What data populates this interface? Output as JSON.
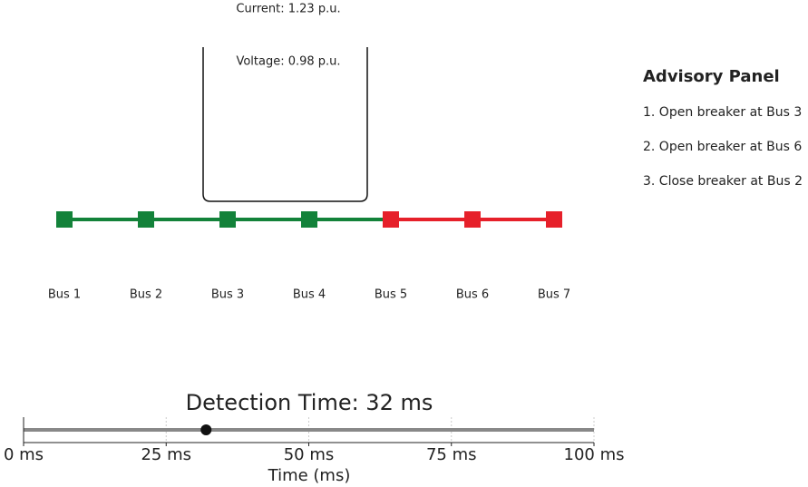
{
  "tooltip": {
    "current": "Current: 1.23 p.u.",
    "voltage": "Voltage: 0.98 p.u."
  },
  "buses": [
    {
      "label": "Bus 1",
      "color": "#13823a"
    },
    {
      "label": "Bus 2",
      "color": "#13823a"
    },
    {
      "label": "Bus 3",
      "color": "#13823a"
    },
    {
      "label": "Bus 4",
      "color": "#13823a"
    },
    {
      "label": "Bus 5",
      "color": "#e6202a"
    },
    {
      "label": "Bus 6",
      "color": "#e6202a"
    },
    {
      "label": "Bus 7",
      "color": "#e6202a"
    }
  ],
  "advisory": {
    "title": "Advisory Panel",
    "items": [
      "1. Open breaker at Bus 3",
      "2. Open breaker at Bus 6",
      "3. Close breaker at Bus 2"
    ]
  },
  "timeline": {
    "title": "Detection Time: 32 ms",
    "value": 32,
    "xlabel": "Time (ms)",
    "xlim": [
      0,
      100
    ],
    "xticks": [
      {
        "value": 0,
        "label": "0 ms"
      },
      {
        "value": 25,
        "label": "25 ms"
      },
      {
        "value": 50,
        "label": "50 ms"
      },
      {
        "value": 75,
        "label": "75 ms"
      },
      {
        "value": 100,
        "label": "100 ms"
      }
    ]
  }
}
